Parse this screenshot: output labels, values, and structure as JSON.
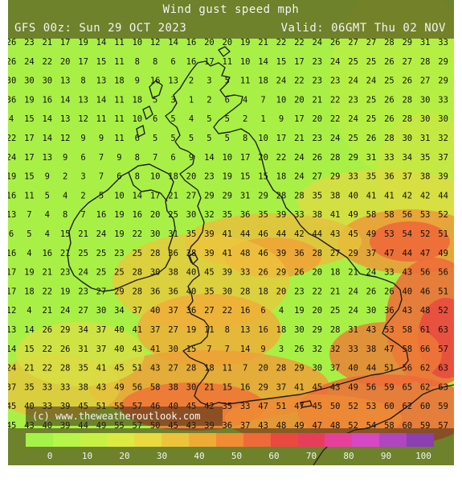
{
  "header": {
    "title": "Wind gust speed mph",
    "run": "GFS 00z: Sun 29 OCT 2023",
    "valid": "Valid: 06GMT Thu 02 NOV"
  },
  "credit": "(c) www.theweatheroutlook.com",
  "legend": {
    "colors": [
      "#a6f24a",
      "#b6f54a",
      "#c8f145",
      "#dceb43",
      "#e8da40",
      "#ecc43c",
      "#eeac36",
      "#f08c34",
      "#ee6a38",
      "#e9493f",
      "#e63e5a",
      "#e6409a",
      "#d647c3",
      "#b045c0",
      "#8b3fb0"
    ],
    "ticks": [
      "0",
      "10",
      "20",
      "30",
      "40",
      "50",
      "60",
      "70",
      "80",
      "90",
      "100"
    ]
  },
  "values": [
    [
      26,
      23,
      21,
      17,
      19,
      14,
      11,
      10,
      12,
      14,
      16,
      20,
      20,
      19,
      21,
      22,
      22,
      24,
      26,
      27,
      27,
      28,
      29,
      31,
      33
    ],
    [
      26,
      24,
      22,
      20,
      17,
      15,
      11,
      8,
      8,
      6,
      16,
      17,
      11,
      10,
      14,
      15,
      17,
      23,
      24,
      25,
      25,
      26,
      27,
      28,
      29
    ],
    [
      30,
      30,
      30,
      13,
      8,
      13,
      18,
      9,
      16,
      13,
      2,
      3,
      5,
      11,
      18,
      24,
      22,
      23,
      23,
      24,
      24,
      25,
      26,
      27,
      29
    ],
    [
      36,
      19,
      16,
      14,
      13,
      14,
      11,
      18,
      5,
      3,
      1,
      2,
      6,
      4,
      7,
      10,
      20,
      21,
      22,
      23,
      25,
      26,
      28,
      30,
      33
    ],
    [
      4,
      15,
      14,
      13,
      12,
      11,
      11,
      10,
      6,
      5,
      4,
      5,
      5,
      2,
      1,
      9,
      17,
      20,
      22,
      24,
      25,
      26,
      28,
      30,
      30
    ],
    [
      22,
      17,
      14,
      12,
      9,
      9,
      11,
      6,
      5,
      5,
      5,
      5,
      5,
      8,
      10,
      17,
      21,
      23,
      24,
      25,
      26,
      28,
      30,
      31,
      32
    ],
    [
      24,
      17,
      13,
      9,
      6,
      7,
      9,
      8,
      7,
      6,
      9,
      14,
      10,
      17,
      20,
      22,
      24,
      26,
      28,
      29,
      31,
      33,
      34,
      35,
      37
    ],
    [
      19,
      15,
      9,
      2,
      3,
      7,
      6,
      8,
      10,
      18,
      20,
      23,
      19,
      15,
      15,
      18,
      24,
      27,
      29,
      33,
      35,
      36,
      37,
      38,
      39
    ],
    [
      16,
      11,
      5,
      4,
      2,
      5,
      10,
      14,
      17,
      21,
      27,
      29,
      29,
      31,
      29,
      28,
      28,
      35,
      38,
      40,
      41,
      41,
      42,
      42,
      44
    ],
    [
      13,
      7,
      4,
      8,
      7,
      16,
      19,
      16,
      20,
      25,
      30,
      32,
      35,
      36,
      35,
      39,
      33,
      38,
      41,
      49,
      58,
      58,
      56,
      53,
      52
    ],
    [
      6,
      5,
      4,
      15,
      21,
      24,
      19,
      22,
      30,
      31,
      35,
      39,
      41,
      44,
      46,
      44,
      42,
      44,
      43,
      45,
      49,
      53,
      54,
      52,
      51
    ],
    [
      16,
      4,
      16,
      21,
      25,
      25,
      23,
      25,
      28,
      36,
      38,
      39,
      41,
      48,
      46,
      39,
      36,
      28,
      27,
      29,
      37,
      47,
      44,
      47,
      49
    ],
    [
      17,
      19,
      21,
      23,
      24,
      25,
      25,
      28,
      30,
      38,
      40,
      45,
      39,
      33,
      26,
      29,
      26,
      20,
      18,
      21,
      24,
      33,
      43,
      56,
      56
    ],
    [
      17,
      18,
      22,
      19,
      23,
      27,
      29,
      28,
      36,
      36,
      40,
      35,
      30,
      28,
      18,
      20,
      23,
      22,
      21,
      24,
      26,
      26,
      40,
      46,
      51
    ],
    [
      12,
      4,
      21,
      24,
      27,
      30,
      34,
      37,
      40,
      37,
      36,
      27,
      22,
      16,
      6,
      4,
      19,
      20,
      25,
      24,
      30,
      36,
      43,
      48,
      52
    ],
    [
      13,
      14,
      26,
      29,
      34,
      37,
      40,
      41,
      37,
      27,
      19,
      11,
      8,
      13,
      16,
      18,
      30,
      29,
      28,
      31,
      43,
      53,
      58,
      61,
      63
    ],
    [
      14,
      15,
      22,
      26,
      31,
      37,
      40,
      43,
      41,
      30,
      15,
      7,
      7,
      14,
      9,
      3,
      26,
      32,
      32,
      33,
      38,
      47,
      58,
      66,
      57
    ],
    [
      24,
      21,
      22,
      28,
      35,
      41,
      45,
      51,
      43,
      27,
      28,
      18,
      11,
      7,
      20,
      28,
      29,
      30,
      37,
      40,
      44,
      51,
      56,
      62,
      63
    ],
    [
      37,
      35,
      33,
      33,
      38,
      43,
      49,
      56,
      58,
      38,
      30,
      21,
      15,
      16,
      29,
      37,
      41,
      45,
      43,
      49,
      56,
      59,
      65,
      62,
      63
    ],
    [
      45,
      40,
      33,
      39,
      45,
      51,
      55,
      57,
      46,
      40,
      45,
      42,
      35,
      33,
      47,
      51,
      47,
      45,
      50,
      52,
      53,
      60,
      62,
      60,
      59
    ],
    [
      45,
      43,
      40,
      39,
      44,
      49,
      55,
      57,
      50,
      45,
      43,
      39,
      36,
      37,
      43,
      48,
      49,
      47,
      48,
      52,
      54,
      58,
      60,
      59,
      57
    ]
  ]
}
